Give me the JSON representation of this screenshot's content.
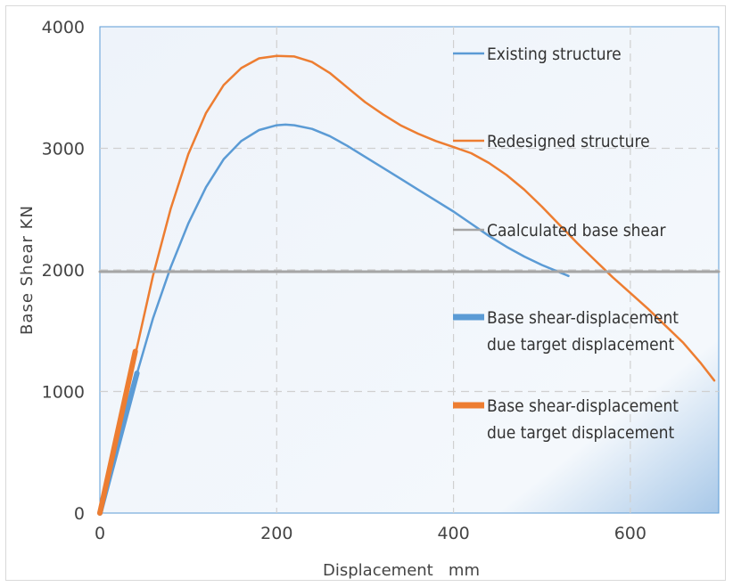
{
  "chart_data": {
    "type": "line",
    "xlabel": "Displacement   mm",
    "ylabel": "Base Shear KN",
    "xlim": [
      0,
      700
    ],
    "ylim": [
      0,
      4000
    ],
    "x_ticks": [
      "0",
      "200",
      "400",
      "600"
    ],
    "y_ticks": [
      "0",
      "1000",
      "2000",
      "3000",
      "4000"
    ],
    "grid": true,
    "legend_position": "right",
    "series": [
      {
        "name": "Existing structure",
        "color": "#5b9bd5",
        "width": 2.5,
        "x": [
          0,
          20,
          40,
          60,
          80,
          100,
          120,
          140,
          160,
          180,
          200,
          210,
          220,
          240,
          260,
          280,
          300,
          320,
          340,
          360,
          380,
          400,
          420,
          440,
          460,
          480,
          500,
          520,
          530
        ],
        "y": [
          0,
          550,
          1100,
          1600,
          2020,
          2380,
          2680,
          2910,
          3060,
          3150,
          3190,
          3195,
          3190,
          3160,
          3100,
          3020,
          2930,
          2840,
          2750,
          2660,
          2570,
          2480,
          2380,
          2280,
          2190,
          2110,
          2040,
          1980,
          1950
        ]
      },
      {
        "name": "Redesigned structure",
        "color": "#ed7d31",
        "width": 2.5,
        "x": [
          0,
          20,
          40,
          60,
          80,
          100,
          120,
          140,
          160,
          180,
          200,
          220,
          240,
          260,
          280,
          300,
          320,
          340,
          360,
          380,
          400,
          420,
          440,
          460,
          480,
          500,
          520,
          540,
          560,
          580,
          600,
          620,
          640,
          660,
          680,
          695
        ],
        "y": [
          0,
          650,
          1300,
          1950,
          2500,
          2950,
          3290,
          3520,
          3660,
          3740,
          3760,
          3755,
          3710,
          3620,
          3500,
          3380,
          3280,
          3190,
          3120,
          3060,
          3010,
          2960,
          2880,
          2780,
          2660,
          2520,
          2370,
          2220,
          2080,
          1940,
          1810,
          1680,
          1540,
          1400,
          1230,
          1090
        ]
      },
      {
        "name": "Caalculated base shear",
        "color": "#a5a5a5",
        "width": 3,
        "x": [
          0,
          700
        ],
        "y": [
          1985,
          1985
        ]
      },
      {
        "name": "Base shear-displacement due target displacement",
        "color": "#5b9bd5",
        "width": 6,
        "x": [
          0,
          42
        ],
        "y": [
          0,
          1150
        ]
      },
      {
        "name": "Base shear-displacement due target displacement",
        "color": "#ed7d31",
        "width": 6,
        "x": [
          0,
          40
        ],
        "y": [
          0,
          1330
        ]
      }
    ]
  }
}
